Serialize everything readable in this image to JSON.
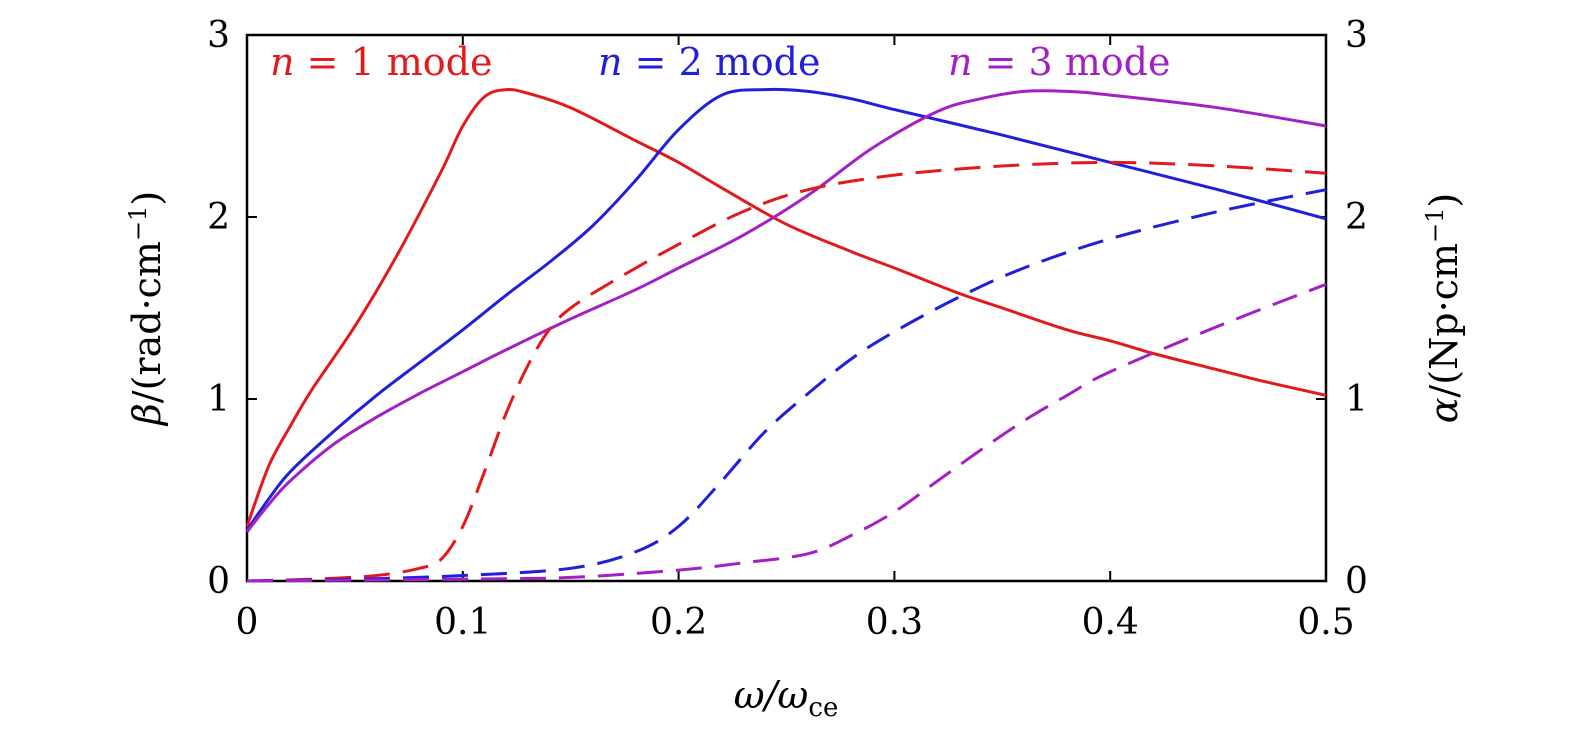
{
  "chart_data": {
    "type": "line",
    "x_axis": {
      "label_symbol": "ω/ω",
      "label_subscript": "ce",
      "range": [
        0,
        0.5
      ],
      "ticks": [
        0,
        0.1,
        0.2,
        0.3,
        0.4,
        0.5
      ],
      "tick_labels": [
        "0",
        "0.1",
        "0.2",
        "0.3",
        "0.4",
        "0.5"
      ]
    },
    "y_left": {
      "label_symbol": "β",
      "label_text": "/(rad·cm",
      "label_superscript": "−1",
      "label_close": ")",
      "range": [
        0,
        3
      ],
      "ticks": [
        0,
        1,
        2,
        3
      ],
      "tick_labels": [
        "0",
        "1",
        "2",
        "3"
      ]
    },
    "y_right": {
      "label_symbol": "α",
      "label_text": "/(Np·cm",
      "label_superscript": "−1",
      "label_close": ")",
      "range": [
        0,
        3
      ],
      "ticks": [
        0,
        1,
        2,
        3
      ],
      "tick_labels": [
        "0",
        "1",
        "2",
        "3"
      ]
    },
    "legend": {
      "placement": "top",
      "entries": [
        {
          "var": "n",
          "rest": " = 1 mode",
          "color": "#e31a1c"
        },
        {
          "var": "n",
          "rest": " = 2 mode",
          "color": "#1f1fdc"
        },
        {
          "var": "n",
          "rest": " = 3 mode",
          "color": "#a321c4"
        }
      ]
    },
    "grid": false,
    "series": [
      {
        "mode": 1,
        "quantity": "beta",
        "axis": "left",
        "style": "solid",
        "color": "#e31a1c",
        "x": [
          0,
          0.01,
          0.02,
          0.03,
          0.05,
          0.07,
          0.09,
          0.1,
          0.11,
          0.12,
          0.13,
          0.15,
          0.18,
          0.2,
          0.22,
          0.25,
          0.28,
          0.3,
          0.33,
          0.35,
          0.38,
          0.4,
          0.42,
          0.45,
          0.47,
          0.5
        ],
        "y": [
          0.3,
          0.63,
          0.85,
          1.05,
          1.4,
          1.8,
          2.25,
          2.5,
          2.66,
          2.7,
          2.68,
          2.6,
          2.42,
          2.3,
          2.16,
          1.96,
          1.81,
          1.72,
          1.58,
          1.5,
          1.38,
          1.32,
          1.25,
          1.16,
          1.1,
          1.02
        ]
      },
      {
        "mode": 2,
        "quantity": "beta",
        "axis": "left",
        "style": "solid",
        "color": "#1f1fdc",
        "x": [
          0,
          0.01,
          0.02,
          0.04,
          0.06,
          0.08,
          0.1,
          0.12,
          0.14,
          0.16,
          0.18,
          0.2,
          0.22,
          0.24,
          0.26,
          0.28,
          0.3,
          0.35,
          0.4,
          0.45,
          0.5
        ],
        "y": [
          0.28,
          0.45,
          0.6,
          0.82,
          1.02,
          1.2,
          1.38,
          1.57,
          1.75,
          1.95,
          2.2,
          2.48,
          2.67,
          2.7,
          2.69,
          2.65,
          2.59,
          2.45,
          2.3,
          2.15,
          1.99
        ]
      },
      {
        "mode": 3,
        "quantity": "beta",
        "axis": "left",
        "style": "solid",
        "color": "#a321c4",
        "x": [
          0,
          0.01,
          0.02,
          0.04,
          0.06,
          0.08,
          0.1,
          0.12,
          0.15,
          0.18,
          0.2,
          0.23,
          0.26,
          0.29,
          0.32,
          0.34,
          0.36,
          0.38,
          0.4,
          0.45,
          0.5
        ],
        "y": [
          0.27,
          0.42,
          0.55,
          0.75,
          0.9,
          1.03,
          1.15,
          1.27,
          1.44,
          1.6,
          1.72,
          1.9,
          2.12,
          2.38,
          2.58,
          2.65,
          2.69,
          2.69,
          2.67,
          2.6,
          2.5
        ]
      },
      {
        "mode": 1,
        "quantity": "alpha",
        "axis": "right",
        "style": "dashed",
        "color": "#e31a1c",
        "x": [
          0,
          0.03,
          0.06,
          0.08,
          0.09,
          0.1,
          0.11,
          0.12,
          0.13,
          0.14,
          0.15,
          0.17,
          0.2,
          0.23,
          0.26,
          0.3,
          0.35,
          0.4,
          0.45,
          0.5
        ],
        "y": [
          0,
          0.01,
          0.03,
          0.07,
          0.12,
          0.3,
          0.6,
          0.92,
          1.18,
          1.38,
          1.5,
          1.65,
          1.85,
          2.03,
          2.15,
          2.23,
          2.28,
          2.3,
          2.28,
          2.24
        ]
      },
      {
        "mode": 2,
        "quantity": "alpha",
        "axis": "right",
        "style": "dashed",
        "color": "#1f1fdc",
        "x": [
          0,
          0.05,
          0.1,
          0.15,
          0.18,
          0.2,
          0.22,
          0.24,
          0.26,
          0.28,
          0.3,
          0.33,
          0.36,
          0.4,
          0.45,
          0.5
        ],
        "y": [
          0,
          0.01,
          0.03,
          0.07,
          0.16,
          0.3,
          0.55,
          0.82,
          1.03,
          1.22,
          1.37,
          1.56,
          1.72,
          1.88,
          2.03,
          2.15
        ]
      },
      {
        "mode": 3,
        "quantity": "alpha",
        "axis": "right",
        "style": "dashed",
        "color": "#a321c4",
        "x": [
          0,
          0.1,
          0.15,
          0.2,
          0.23,
          0.26,
          0.28,
          0.3,
          0.32,
          0.34,
          0.36,
          0.38,
          0.4,
          0.45,
          0.5
        ],
        "y": [
          0,
          0.01,
          0.02,
          0.06,
          0.1,
          0.15,
          0.25,
          0.38,
          0.55,
          0.72,
          0.88,
          1.02,
          1.15,
          1.4,
          1.63
        ]
      }
    ]
  }
}
